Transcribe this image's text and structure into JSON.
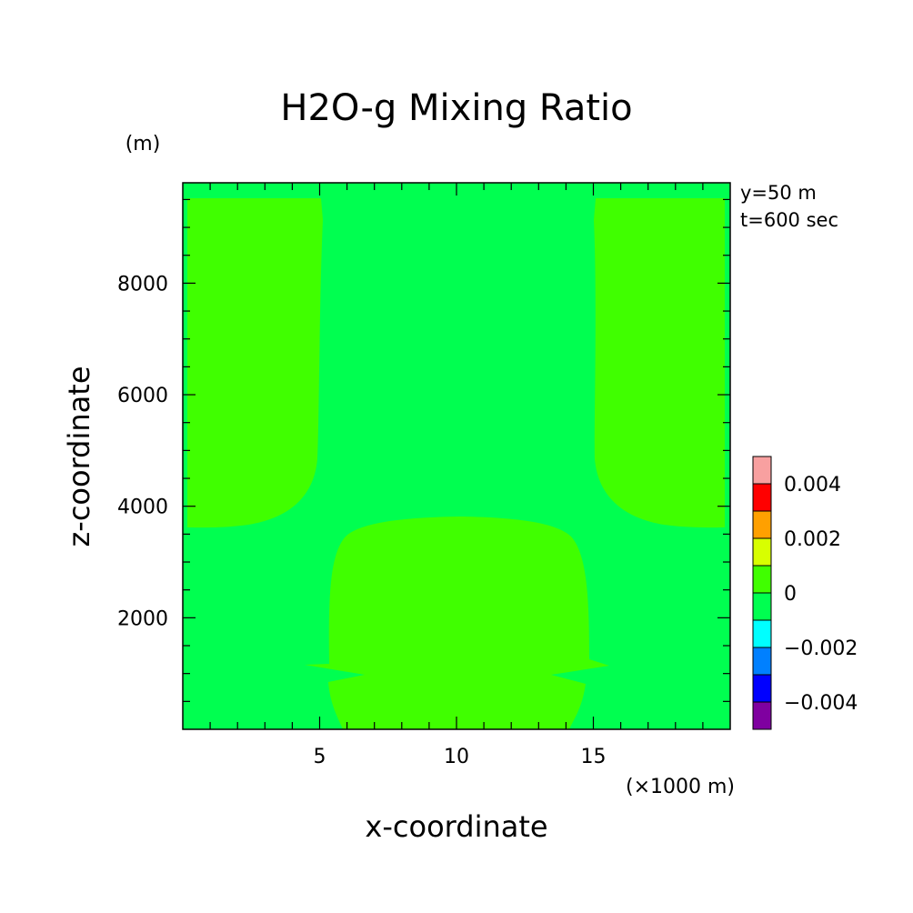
{
  "chart_data": {
    "type": "heatmap",
    "title": "H2O-g Mixing Ratio",
    "xlabel": "x-coordinate",
    "ylabel": "z-coordinate",
    "x_unit": "(×1000 m)",
    "y_unit": "(m)",
    "annotations": [
      "y=50 m",
      "t=600 sec"
    ],
    "xlim": [
      0,
      20
    ],
    "ylim": [
      0,
      9800
    ],
    "x_ticks": [
      5,
      10,
      15
    ],
    "y_ticks": [
      2000,
      4000,
      6000,
      8000
    ],
    "colorbar": {
      "boundaries": [
        -0.005,
        -0.004,
        -0.003,
        -0.002,
        -0.001,
        0,
        0.001,
        0.002,
        0.003,
        0.004,
        0.005
      ],
      "colors": [
        "#7f00a0",
        "#0000ff",
        "#0080ff",
        "#00ffff",
        "#00ff50",
        "#40ff00",
        "#d8ff00",
        "#ffa000",
        "#ff0000",
        "#f8a0a0"
      ],
      "labels": [
        {
          "value": 0.004,
          "text": "0.004"
        },
        {
          "value": 0.002,
          "text": "0.002"
        },
        {
          "value": 0,
          "text": "0"
        },
        {
          "value": -0.002,
          "text": "−0.002"
        },
        {
          "value": -0.004,
          "text": "−0.004"
        }
      ]
    },
    "background_color": "#00ff50",
    "region_color": "#40ff00"
  }
}
